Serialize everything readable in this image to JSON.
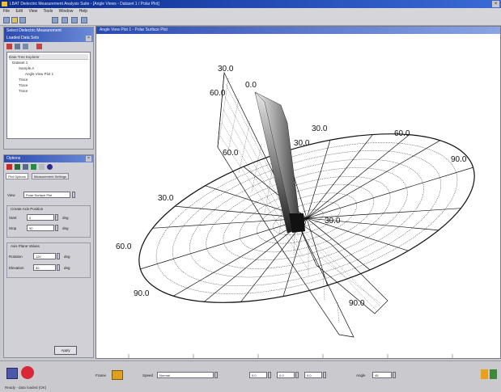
{
  "window": {
    "title": "LBAT Dielectric Measurement Analysis Suite - [Angle Views - Dataset 1 / Polar Plot]"
  },
  "menu": [
    "File",
    "Edit",
    "View",
    "Tools",
    "Window",
    "Help"
  ],
  "panels": {
    "data_tree": {
      "title": "Select Dielectric Measurement",
      "subtitle": "Loaded Data Sets",
      "header": "Data Tree Explorer",
      "items": [
        "Dataset 1",
        "Sample A",
        "Angle View Plot 1",
        "Trace",
        "Trace",
        "Trace"
      ]
    },
    "options": {
      "title": "Options",
      "tabs": [
        "Plot Options",
        "Measurement Settings"
      ],
      "view_label": "View",
      "view_value": "Polar Surface Plot",
      "group1_title": "Create Axis Position",
      "rows1": [
        {
          "label": "Start",
          "value": "0",
          "unit": "deg"
        },
        {
          "label": "Stop",
          "value": "90",
          "unit": "deg"
        }
      ],
      "group2_title": "Axis Plane Values",
      "rows2": [
        {
          "label": "Rotation",
          "value": "120",
          "unit": "deg"
        },
        {
          "label": "Elevation",
          "value": "30",
          "unit": "deg"
        }
      ],
      "apply": "Apply"
    }
  },
  "chart_window": {
    "title": "Angle View Plot 1 - Polar Surface Plot",
    "labels": [
      "30.0",
      "60.0",
      "0.0",
      "30.0",
      "60.0",
      "90.0",
      "60.0",
      "30.0",
      "30.0",
      "60.0",
      "90.0",
      "30.0",
      "90.0"
    ]
  },
  "statusbar": {
    "labels": [
      "Frame",
      "Speed",
      "Angle"
    ],
    "speed_value": "Normal",
    "f1": "0.0",
    "f2": "0.0",
    "f3": "0.0",
    "angle_value": "45",
    "status_text": "Ready - data loaded (OK)"
  }
}
